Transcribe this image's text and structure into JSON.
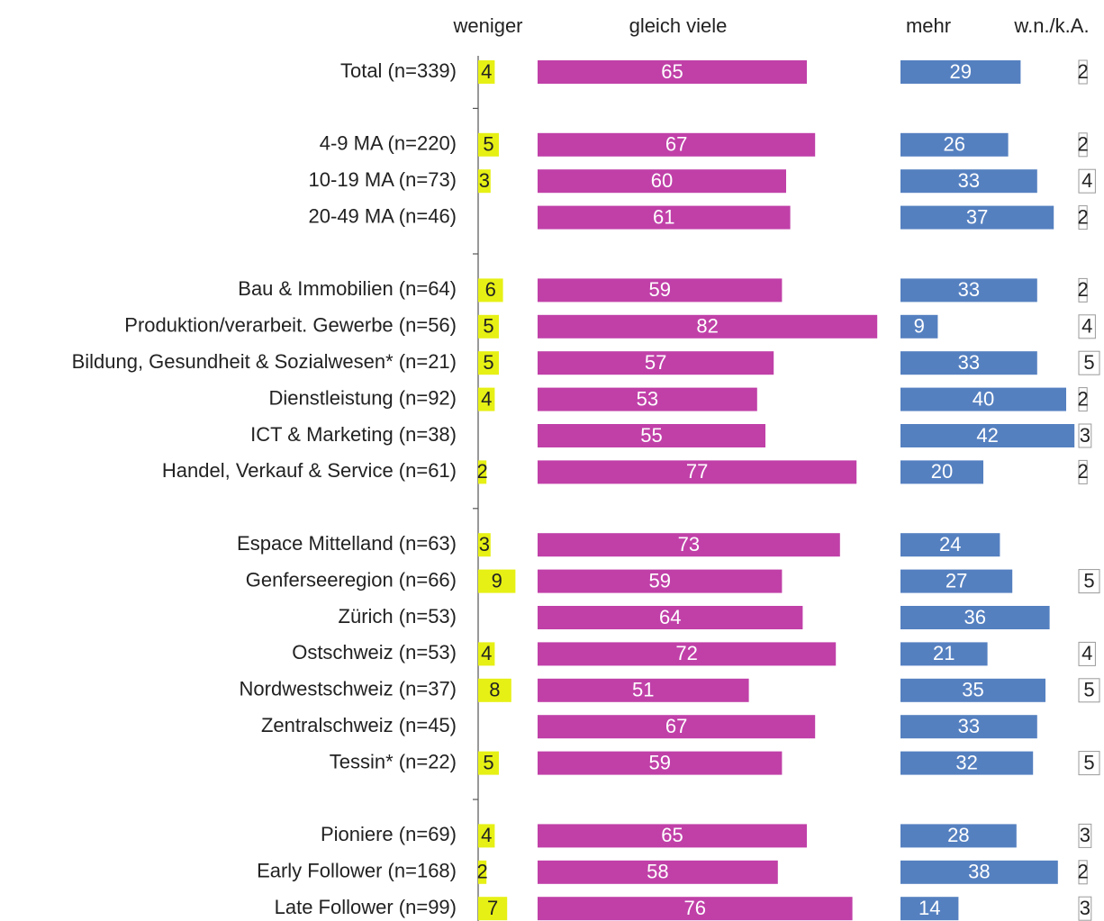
{
  "chart_data": {
    "type": "bar",
    "stacked": false,
    "categories": [
      "Total (n=339)",
      null,
      "4-9 MA (n=220)",
      "10-19 MA (n=73)",
      "20-49 MA (n=46)",
      null,
      "Bau & Immobilien (n=64)",
      "Produktion/verarbeit. Gewerbe (n=56)",
      "Bildung, Gesundheit & Sozialwesen* (n=21)",
      "Dienstleistung (n=92)",
      "ICT & Marketing (n=38)",
      "Handel, Verkauf & Service (n=61)",
      null,
      "Espace Mittelland (n=63)",
      "Genferseeregion (n=66)",
      "Zürich (n=53)",
      "Ostschweiz (n=53)",
      "Nordwestschweiz (n=37)",
      "Zentralschweiz (n=45)",
      "Tessin* (n=22)",
      null,
      "Pioniere (n=69)",
      "Early Follower (n=168)",
      "Late Follower (n=99)"
    ],
    "series": [
      {
        "name": "weniger",
        "color": "#e6f014",
        "values": [
          4,
          null,
          5,
          3,
          null,
          null,
          6,
          5,
          5,
          4,
          null,
          2,
          null,
          3,
          9,
          null,
          4,
          8,
          null,
          5,
          null,
          4,
          2,
          7
        ]
      },
      {
        "name": "gleich viele",
        "color": "#c040a8",
        "values": [
          65,
          null,
          67,
          60,
          61,
          null,
          59,
          82,
          57,
          53,
          55,
          77,
          null,
          73,
          59,
          64,
          72,
          51,
          67,
          59,
          null,
          65,
          58,
          76
        ]
      },
      {
        "name": "mehr",
        "color": "#5580c0",
        "values": [
          29,
          null,
          26,
          33,
          37,
          null,
          33,
          9,
          33,
          40,
          42,
          20,
          null,
          24,
          27,
          36,
          21,
          35,
          33,
          32,
          null,
          28,
          38,
          14
        ]
      },
      {
        "name": "w.n./k.A.",
        "color": "#ffffff",
        "values": [
          2,
          null,
          2,
          4,
          2,
          null,
          2,
          4,
          5,
          2,
          3,
          2,
          null,
          null,
          5,
          null,
          4,
          5,
          null,
          5,
          null,
          3,
          2,
          3
        ]
      }
    ]
  }
}
